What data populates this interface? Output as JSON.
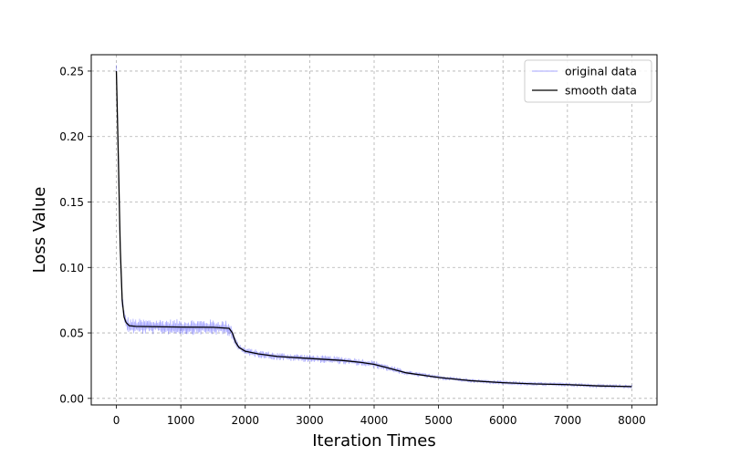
{
  "chart_data": {
    "type": "line",
    "title": "",
    "xlabel": "Iteration Times",
    "ylabel": "Loss Value",
    "xlim": [
      -390,
      8390
    ],
    "ylim": [
      -0.005,
      0.2625
    ],
    "x_ticks": [
      0,
      1000,
      2000,
      3000,
      4000,
      5000,
      6000,
      7000,
      8000
    ],
    "y_ticks": [
      0.0,
      0.05,
      0.1,
      0.15,
      0.2,
      0.25
    ],
    "x_tick_labels": [
      "0",
      "1000",
      "2000",
      "3000",
      "4000",
      "5000",
      "6000",
      "7000",
      "8000"
    ],
    "y_tick_labels": [
      "0.00",
      "0.05",
      "0.10",
      "0.15",
      "0.20",
      "0.25"
    ],
    "grid": true,
    "grid_style": "dashed",
    "legend_position": "top-right",
    "series": [
      {
        "name": "original data",
        "color": "#0000ff",
        "style": "thin translucent noisy line",
        "noise_band": [
          [
            0,
            0.006
          ],
          [
            150,
            0.006
          ],
          [
            1750,
            0.006
          ],
          [
            1900,
            0.003
          ],
          [
            3000,
            0.003
          ],
          [
            4000,
            0.003
          ],
          [
            4500,
            0.002
          ],
          [
            5500,
            0.0015
          ],
          [
            8000,
            0.0015
          ]
        ]
      },
      {
        "name": "smooth data",
        "color": "#000000",
        "x": [
          0,
          30,
          60,
          90,
          120,
          150,
          200,
          300,
          500,
          1000,
          1500,
          1750,
          1800,
          1850,
          1900,
          2000,
          2200,
          2500,
          3000,
          3500,
          3800,
          4000,
          4200,
          4500,
          5000,
          5500,
          6000,
          6500,
          7000,
          7500,
          8000
        ],
        "y": [
          0.25,
          0.185,
          0.115,
          0.075,
          0.062,
          0.058,
          0.0555,
          0.055,
          0.0548,
          0.0545,
          0.0543,
          0.0535,
          0.05,
          0.043,
          0.039,
          0.036,
          0.034,
          0.032,
          0.0305,
          0.029,
          0.0275,
          0.026,
          0.0235,
          0.0195,
          0.016,
          0.0135,
          0.012,
          0.011,
          0.0105,
          0.0095,
          0.009
        ]
      }
    ]
  }
}
